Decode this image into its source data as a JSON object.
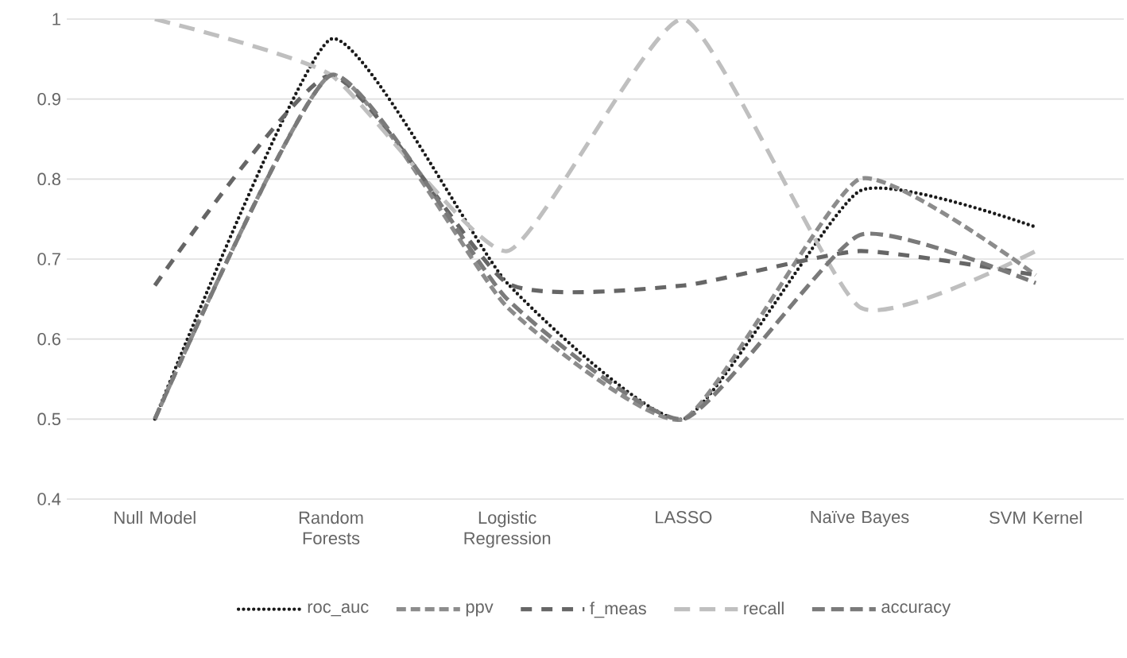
{
  "chart_data": {
    "type": "line",
    "categories": [
      "Null Model",
      "Random Forests",
      "Logistic Regression",
      "LASSO",
      "Naïve Bayes",
      "SVM Kernel"
    ],
    "series": [
      {
        "name": "roc_auc",
        "color": "#1a1a1a",
        "line_style": "dotted",
        "values": [
          0.5,
          0.975,
          0.67,
          0.5,
          0.785,
          0.74
        ]
      },
      {
        "name": "ppv",
        "color": "#8c8c8c",
        "line_style": "dashed",
        "values": [
          0.5,
          0.93,
          0.64,
          0.5,
          0.8,
          0.68
        ]
      },
      {
        "name": "f_meas",
        "color": "#666666",
        "line_style": "dashed",
        "values": [
          0.667,
          0.93,
          0.67,
          0.667,
          0.71,
          0.68
        ]
      },
      {
        "name": "recall",
        "color": "#bfbfbf",
        "line_style": "dashed",
        "values": [
          1,
          0.93,
          0.71,
          1,
          0.64,
          0.71
        ]
      },
      {
        "name": "accuracy",
        "color": "#7a7a7a",
        "line_style": "dashed",
        "values": [
          0.5,
          0.93,
          0.65,
          0.5,
          0.73,
          0.67
        ]
      }
    ],
    "ylim": [
      0.4,
      1
    ],
    "yticks": [
      0.4,
      0.5,
      0.6,
      0.7,
      0.8,
      0.9,
      1
    ],
    "grid": "y",
    "legend": "bottom",
    "marker": "none"
  }
}
